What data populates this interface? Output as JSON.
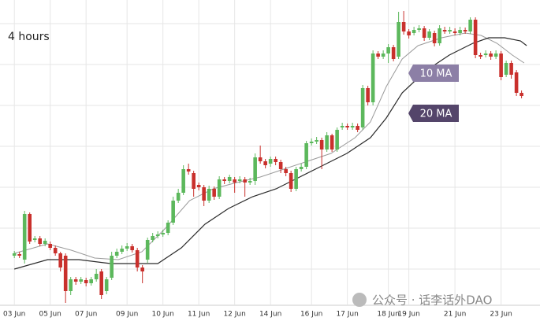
{
  "chart_data": {
    "type": "candlestick",
    "title": "4 hours",
    "watermark": "公众号 · 话李话外DAO",
    "up_color": "#5cb85c",
    "down_color": "#c9302c",
    "xlim": [
      -2.8,
      102.6
    ],
    "ylim": [
      15,
      400
    ],
    "xticks": [
      {
        "value": 0,
        "label": "03 Jun"
      },
      {
        "value": 7,
        "label": "05 Jun"
      },
      {
        "value": 14,
        "label": "07 Jun"
      },
      {
        "value": 22,
        "label": "09 Jun"
      },
      {
        "value": 29,
        "label": "10 Jun"
      },
      {
        "value": 36,
        "label": "11 Jun"
      },
      {
        "value": 43,
        "label": "12 Jun"
      },
      {
        "value": 50,
        "label": "14 Jun"
      },
      {
        "value": 58,
        "label": "16 Jun"
      },
      {
        "value": 65,
        "label": "17 Jun"
      },
      {
        "value": 73,
        "label": "18 Jun"
      },
      {
        "value": 77,
        "label": "19 Jun"
      },
      {
        "value": 86,
        "label": "21 Jun"
      },
      {
        "value": 95,
        "label": "23 Jun"
      }
    ],
    "open": [
      75,
      77,
      70,
      128,
      95,
      97,
      90,
      90,
      85,
      78,
      75,
      30,
      45,
      42,
      44,
      40,
      45,
      55,
      30,
      47,
      75,
      80,
      84,
      87,
      82,
      60,
      70,
      95,
      100,
      102,
      104,
      117,
      145,
      155,
      185,
      180,
      165,
      162,
      145,
      160,
      150,
      172,
      170,
      172,
      170,
      172,
      168,
      170,
      200,
      195,
      192,
      198,
      194,
      185,
      180,
      160,
      185,
      188,
      218,
      220,
      222,
      210,
      228,
      210,
      238,
      240,
      238,
      240,
      238,
      288,
      270,
      332,
      328,
      332,
      340,
      328,
      372,
      360,
      358,
      362,
      364,
      352,
      358,
      345,
      362,
      360,
      360,
      358,
      362,
      360,
      375,
      330,
      330,
      332,
      328,
      332,
      305,
      320,
      308,
      282
    ],
    "high": [
      81,
      80,
      132,
      130,
      100,
      100,
      97,
      93,
      88,
      80,
      78,
      48,
      48,
      48,
      47,
      48,
      58,
      58,
      48,
      80,
      84,
      88,
      91,
      90,
      85,
      63,
      98,
      104,
      106,
      108,
      120,
      150,
      160,
      190,
      192,
      183,
      168,
      165,
      164,
      163,
      176,
      175,
      178,
      175,
      176,
      175,
      174,
      205,
      215,
      198,
      201,
      201,
      197,
      188,
      183,
      188,
      192,
      221,
      224,
      226,
      225,
      232,
      230,
      238,
      244,
      243,
      244,
      243,
      292,
      291,
      336,
      335,
      336,
      344,
      343,
      385,
      386,
      363,
      366,
      368,
      367,
      363,
      361,
      368,
      366,
      366,
      364,
      366,
      365,
      378,
      378,
      333,
      336,
      335,
      336,
      335,
      323,
      323,
      311,
      285
    ],
    "low": [
      72,
      72,
      65,
      90,
      92,
      87,
      87,
      82,
      75,
      55,
      15,
      25,
      38,
      39,
      36,
      37,
      42,
      20,
      26,
      44,
      72,
      77,
      81,
      79,
      55,
      40,
      66,
      92,
      97,
      99,
      101,
      114,
      142,
      152,
      178,
      150,
      158,
      138,
      142,
      146,
      147,
      166,
      167,
      155,
      167,
      150,
      165,
      165,
      192,
      186,
      188,
      190,
      180,
      176,
      156,
      157,
      182,
      185,
      215,
      217,
      185,
      207,
      207,
      207,
      235,
      235,
      235,
      232,
      235,
      266,
      266,
      325,
      325,
      320,
      322,
      325,
      356,
      351,
      355,
      359,
      348,
      349,
      341,
      342,
      357,
      357,
      355,
      355,
      357,
      357,
      326,
      325,
      327,
      324,
      325,
      298,
      302,
      300,
      278,
      275
    ],
    "close": [
      78,
      75,
      128,
      93,
      97,
      90,
      94,
      85,
      78,
      60,
      30,
      45,
      42,
      45,
      40,
      45,
      52,
      25,
      45,
      75,
      80,
      84,
      87,
      82,
      60,
      55,
      95,
      100,
      102,
      104,
      117,
      145,
      155,
      185,
      182,
      160,
      162,
      145,
      160,
      150,
      172,
      170,
      175,
      168,
      172,
      168,
      170,
      200,
      195,
      190,
      198,
      194,
      185,
      180,
      160,
      185,
      188,
      218,
      220,
      222,
      210,
      228,
      210,
      235,
      240,
      238,
      240,
      235,
      288,
      270,
      332,
      328,
      332,
      340,
      325,
      372,
      360,
      355,
      362,
      364,
      352,
      360,
      345,
      364,
      360,
      362,
      358,
      362,
      360,
      375,
      330,
      328,
      332,
      328,
      332,
      302,
      320,
      305,
      282,
      278
    ],
    "series": [
      {
        "name": "10 MA",
        "color": "#9a9a9a",
        "label_color": "#8c7fa6",
        "x": [
          0,
          6.5,
          11.1,
          15.7,
          20.3,
          24.9,
          29.5,
          34.2,
          38.8,
          43.4,
          48,
          52.6,
          57.2,
          61.8,
          66.5,
          69.5,
          72.6,
          75.7,
          78.8,
          83.4,
          88,
          91.1,
          94.2,
          97.2,
          99.5
        ],
        "values": [
          78,
          90,
          82,
          72,
          70,
          80,
          110,
          145,
          160,
          168,
          175,
          185,
          195,
          205,
          225,
          245,
          290,
          325,
          342,
          352,
          358,
          355,
          345,
          330,
          320
        ]
      },
      {
        "name": "20 MA",
        "color": "#2b2b2b",
        "label_color": "#54456a",
        "x": [
          0,
          6.5,
          12.6,
          18.8,
          23.4,
          28,
          32.6,
          37.2,
          41.8,
          46.5,
          51.1,
          55.7,
          60.3,
          64.9,
          69.5,
          72.6,
          75.7,
          80.3,
          84.9,
          89.5,
          92.6,
          95.7,
          98.8,
          100
        ],
        "values": [
          58,
          70,
          70,
          65,
          65,
          65,
          85,
          115,
          135,
          150,
          160,
          175,
          190,
          205,
          225,
          250,
          282,
          310,
          330,
          345,
          352,
          352,
          348,
          342
        ]
      }
    ]
  }
}
